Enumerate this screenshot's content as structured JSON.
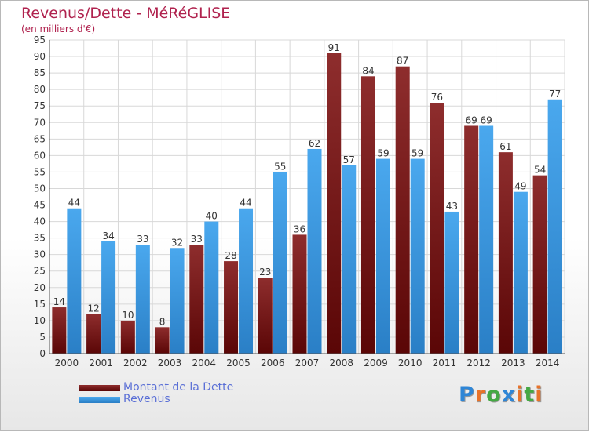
{
  "header": {
    "title": "Revenus/Dette - MéRéGLISE",
    "subtitle": "(en milliers d'€)"
  },
  "chart_data": {
    "type": "bar",
    "title": "Revenus/Dette - MéRéGLISE",
    "subtitle": "(en milliers d'€)",
    "xlabel": "",
    "ylabel": "",
    "ylim": [
      0,
      95
    ],
    "ytick_step": 5,
    "grid": true,
    "legend_position": "bottom-left",
    "categories": [
      "2000",
      "2001",
      "2002",
      "2003",
      "2004",
      "2005",
      "2006",
      "2007",
      "2008",
      "2009",
      "2010",
      "2011",
      "2012",
      "2013",
      "2014"
    ],
    "series": [
      {
        "name": "Montant de la Dette",
        "color": "#7a1c1c",
        "values": [
          14,
          12,
          10,
          8,
          33,
          28,
          23,
          36,
          91,
          84,
          87,
          76,
          69,
          61,
          54
        ]
      },
      {
        "name": "Revenus",
        "color": "#3c95dd",
        "values": [
          44,
          34,
          33,
          32,
          40,
          44,
          55,
          62,
          57,
          59,
          59,
          43,
          69,
          49,
          77
        ]
      }
    ]
  },
  "brand": {
    "letters": [
      "P",
      "r",
      "o",
      "x",
      "i",
      "t",
      "i"
    ],
    "colors": [
      "#2f86d6",
      "#e8732a",
      "#45a843",
      "#2f86d6",
      "#e8732a",
      "#45a843",
      "#e8732a"
    ]
  }
}
